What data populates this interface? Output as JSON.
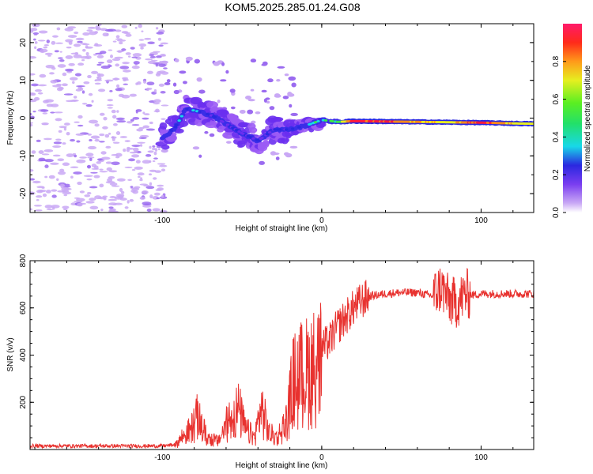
{
  "title": "KOM5.2025.285.01.24.G08",
  "colors": {
    "snr_line": "#e8322f",
    "frame": "#000000",
    "signal_core": "#ff1a3c",
    "scatter_light": "#c9a8f5",
    "scatter_mid": "#9b6bf0"
  },
  "chart_data": [
    {
      "type": "heatmap",
      "name": "spectrogram",
      "xlabel": "Height of straight line (km)",
      "ylabel": "Frequency (Hz)",
      "xlim": [
        -183,
        133
      ],
      "ylim": [
        -25,
        25
      ],
      "xticks": [
        -100,
        0,
        100
      ],
      "xtick_labels": [
        "-100",
        "0",
        "100"
      ],
      "yticks": [
        -20,
        -10,
        0,
        10,
        20
      ],
      "ytick_labels": [
        "-20",
        "-10",
        "0",
        "10",
        "20"
      ],
      "grid": false,
      "signal_track": {
        "x": [
          -100,
          -92,
          -85,
          -75,
          -68,
          -60,
          -50,
          -40,
          -30,
          -20,
          -10,
          0,
          10,
          20,
          40,
          60,
          80,
          100,
          120,
          133
        ],
        "freq": [
          -5.5,
          -2.5,
          2.5,
          1.5,
          0.5,
          -1.5,
          -4,
          -6,
          -3,
          -3,
          -2,
          -0.5,
          -1,
          -0.8,
          -0.9,
          -1.0,
          -1.1,
          -1.2,
          -1.4,
          -1.5
        ],
        "amplitude": [
          0.25,
          0.35,
          0.45,
          0.4,
          0.3,
          0.3,
          0.3,
          0.35,
          0.3,
          0.3,
          0.45,
          0.5,
          0.5,
          0.95,
          0.9,
          0.75,
          0.7,
          0.95,
          0.7,
          0.7
        ]
      },
      "colorbar": {
        "label": "Normalized spectral amplitude",
        "range": [
          0,
          1
        ],
        "ticks": [
          0.0,
          0.2,
          0.4,
          0.6,
          0.8
        ],
        "tick_labels": [
          "0.0",
          "0.2",
          "0.4",
          "0.6",
          "0.8"
        ]
      }
    },
    {
      "type": "line",
      "name": "snr",
      "xlabel": "Height of straight line (km)",
      "ylabel": "SNR (v/v)",
      "xlim": [
        -183,
        133
      ],
      "ylim": [
        0,
        800
      ],
      "xticks": [
        -100,
        0,
        100
      ],
      "xtick_labels": [
        "-100",
        "0",
        "100"
      ],
      "yticks": [
        200,
        400,
        600,
        800
      ],
      "ytick_labels": [
        "200",
        "400",
        "600",
        "800"
      ],
      "grid": false,
      "series": [
        {
          "name": "SNR",
          "x": [
            -183,
            -150,
            -120,
            -100,
            -92,
            -88,
            -82,
            -78,
            -72,
            -65,
            -58,
            -52,
            -48,
            -42,
            -38,
            -33,
            -28,
            -22,
            -18,
            -15,
            -10,
            -5,
            0,
            5,
            10,
            15,
            20,
            25,
            30,
            40,
            50,
            60,
            70,
            75,
            80,
            85,
            90,
            95,
            100,
            110,
            120,
            133
          ],
          "y": [
            15,
            15,
            15,
            15,
            20,
            60,
            100,
            160,
            60,
            40,
            150,
            200,
            100,
            60,
            210,
            80,
            60,
            140,
            330,
            360,
            380,
            410,
            430,
            460,
            520,
            560,
            600,
            630,
            650,
            660,
            665,
            665,
            650,
            690,
            630,
            620,
            660,
            655,
            660,
            660,
            660,
            660
          ]
        }
      ]
    }
  ]
}
